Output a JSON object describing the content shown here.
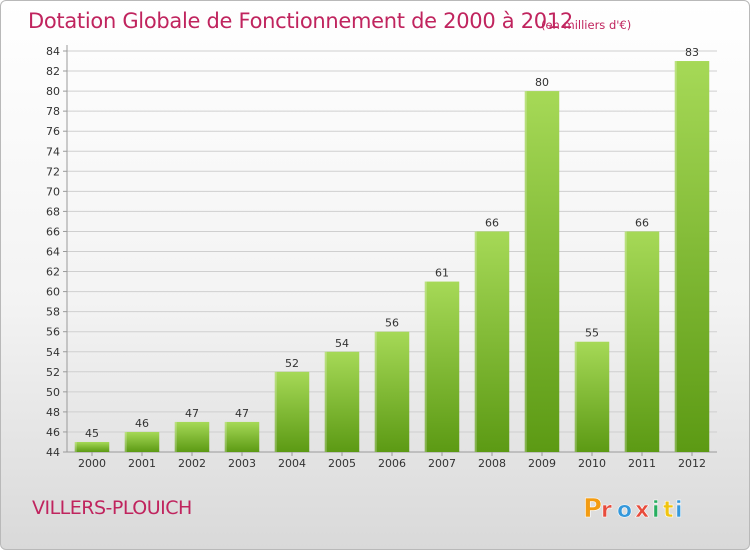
{
  "title": "Dotation Globale de Fonctionnement de 2000 à 2012",
  "subtitle": "(en milliers d'€)",
  "commune": "VILLERS-PLOUICH",
  "logo": {
    "text": "Proxiti",
    "letters": [
      "P",
      "r",
      "o",
      "x",
      "i",
      "t",
      "i"
    ]
  },
  "colors": {
    "title": "#c0245e",
    "bar_light": "#a6d957",
    "bar_dark": "#5c9a14",
    "grid": "#cfcfcf",
    "axis": "#9a9a9a",
    "text": "#333333"
  },
  "chart_data": {
    "type": "bar",
    "categories": [
      "2000",
      "2001",
      "2002",
      "2003",
      "2004",
      "2005",
      "2006",
      "2007",
      "2008",
      "2009",
      "2010",
      "2011",
      "2012"
    ],
    "values": [
      45,
      46,
      47,
      47,
      52,
      54,
      56,
      61,
      66,
      80,
      55,
      66,
      83
    ],
    "ylim": [
      44,
      84
    ],
    "ytick_step": 2,
    "grid": true,
    "data_labels": true
  }
}
